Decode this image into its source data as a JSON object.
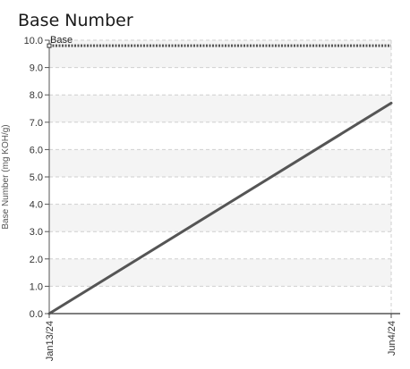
{
  "chart_data": {
    "type": "line",
    "title": "Base Number",
    "ylabel": "Base Number (mg KOH/g)",
    "xlabel": "",
    "ylim": [
      0,
      10
    ],
    "yticks": [
      "0.0",
      "1.0",
      "2.0",
      "3.0",
      "4.0",
      "5.0",
      "6.0",
      "7.0",
      "8.0",
      "9.0",
      "10.0"
    ],
    "categories": [
      "Jan13/24",
      "Jun4/24"
    ],
    "series": [
      {
        "values": [
          0.0,
          7.7
        ],
        "color": "#555555"
      }
    ],
    "reference_line": {
      "label": "Base",
      "value": 9.8,
      "color": "#555555"
    },
    "grid": true,
    "band_colors": [
      "#f4f4f4",
      "#ffffff"
    ]
  }
}
